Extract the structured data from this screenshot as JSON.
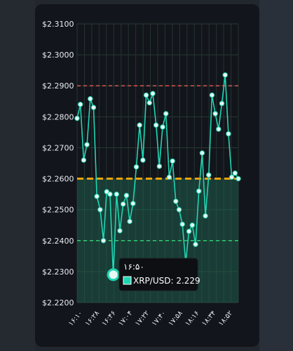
{
  "chart_data": {
    "type": "line",
    "title": "",
    "xlabel": "",
    "ylabel": "",
    "ylim": [
      2.22,
      2.31
    ],
    "y_ticks": [
      "$2.2200",
      "$2.2300",
      "$2.2400",
      "$2.2500",
      "$2.2600",
      "$2.2700",
      "$2.2800",
      "$2.2900",
      "$2.3000",
      "$2.3100"
    ],
    "y_tick_values": [
      2.22,
      2.23,
      2.24,
      2.25,
      2.26,
      2.27,
      2.28,
      2.29,
      2.3,
      2.31
    ],
    "x_ticks": [
      "۱۶:۱۰",
      "۱۶:۲۸",
      "۱۶:۴۶",
      "۱۷:۰۴",
      "۱۷:۲۲",
      "۱۷:۴۰",
      "۱۷:۵۸",
      "۱۸:۱۶",
      "۱۸:۳۴",
      "۱۸:۵۲"
    ],
    "grid": true,
    "series": [
      {
        "values": [
          2.2795,
          2.284,
          2.266,
          2.271,
          2.2858,
          2.283,
          2.2543,
          2.25,
          2.24,
          2.2558,
          2.255,
          2.229,
          2.255,
          2.2432,
          2.2518,
          2.2546,
          2.2462,
          2.252,
          2.2638,
          2.2773,
          2.266,
          2.287,
          2.2845,
          2.2875,
          2.2773,
          2.264,
          2.2767,
          2.281,
          2.2605,
          2.2657,
          2.2527,
          2.25,
          2.2453,
          2.233,
          2.243,
          2.245,
          2.2388,
          2.256,
          2.2683,
          2.248,
          2.2612,
          2.287,
          2.281,
          2.276,
          2.2843,
          2.2935,
          2.2745,
          2.2605,
          2.2618,
          2.26
        ]
      }
    ],
    "reference_lines": [
      {
        "value": 2.29,
        "color": "#d9534f",
        "style": "dashed"
      },
      {
        "value": 2.26,
        "color": "#f0a30a",
        "style": "dashed"
      },
      {
        "value": 2.24,
        "color": "#2ecc71",
        "style": "dashed"
      }
    ],
    "tooltip": {
      "time": "۱۶:۵۰",
      "label": "XRP/USD: 2.229",
      "value": 2.229
    },
    "colors": {
      "line": "#1fd6b4",
      "area": "#1f5e4c",
      "marker_fill": "#e7f7f2",
      "highlight": "#1fd6b4"
    }
  }
}
